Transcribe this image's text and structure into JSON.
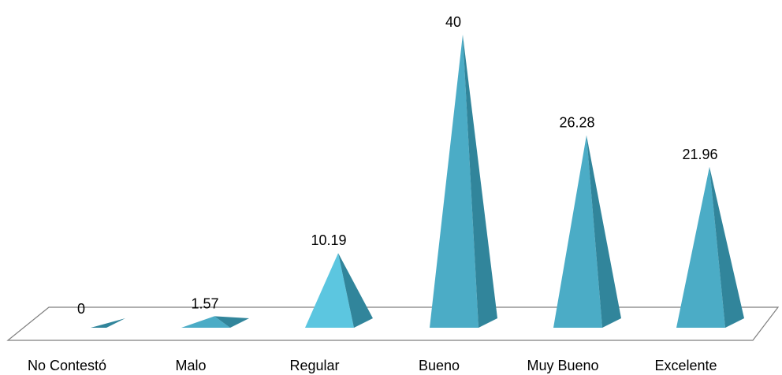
{
  "chart_data": {
    "type": "bar",
    "shape": "pyramid-3d",
    "categories": [
      "No Contestó",
      "Malo",
      "Regular",
      "Bueno",
      "Muy Bueno",
      "Excelente"
    ],
    "values": [
      0,
      1.57,
      10.19,
      40,
      26.28,
      21.96
    ],
    "value_labels": [
      "0",
      "1.57",
      "10.19",
      "40",
      "26.28",
      "21.96"
    ],
    "ylim": [
      0,
      40
    ],
    "grid": false,
    "legend": "none",
    "colors": {
      "front_face": "#4bacc6",
      "front_face_light": "#5cc6e0",
      "side_face": "#31859b",
      "floor_stroke": "#7f7f7f"
    }
  }
}
